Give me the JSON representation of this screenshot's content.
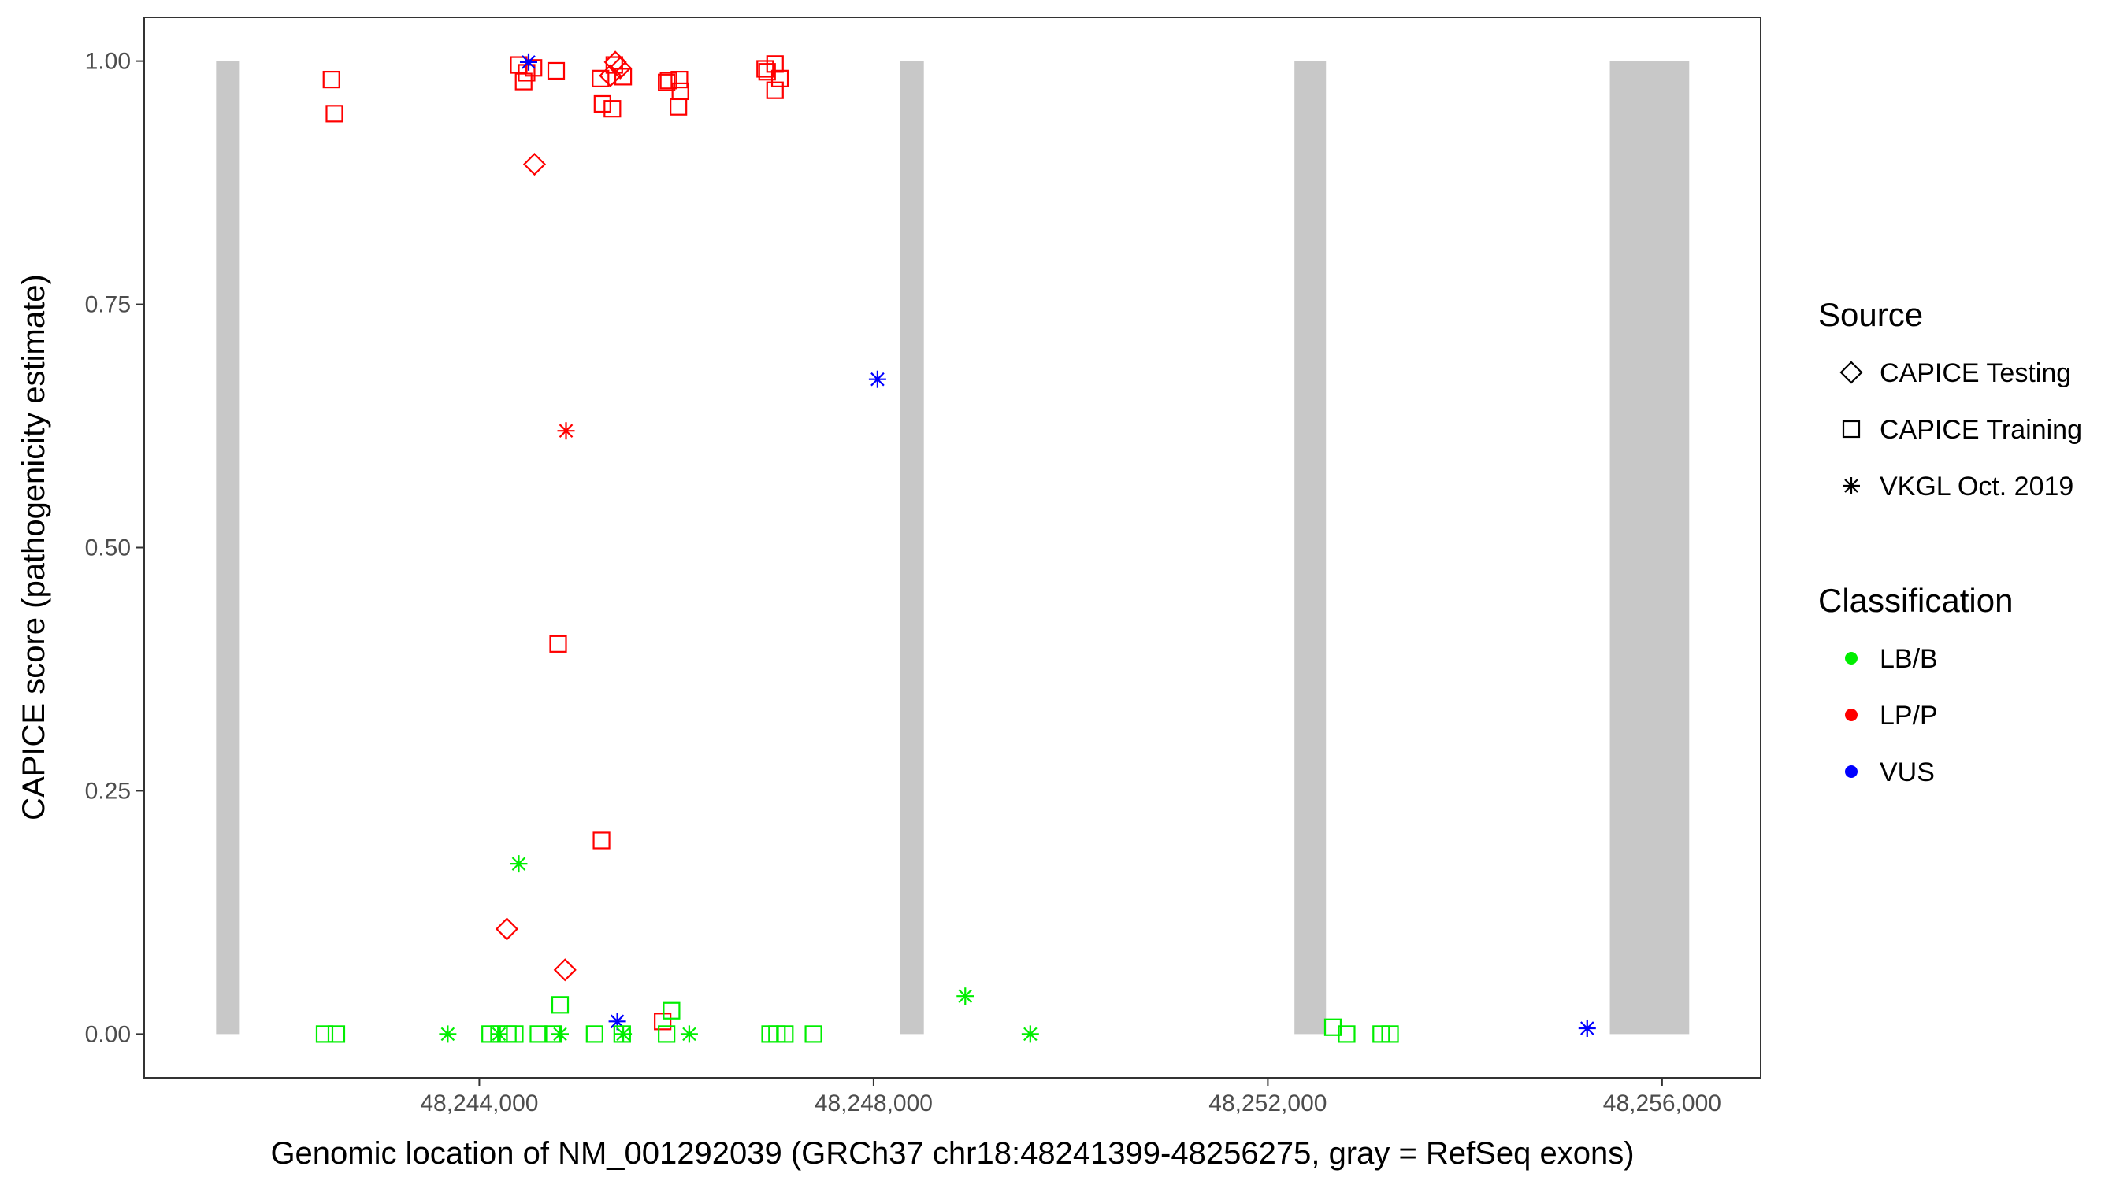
{
  "chart_data": {
    "type": "scatter",
    "title": "",
    "xlabel": "Genomic location of NM_001292039 (GRCh37 chr18:48241399-48256275, gray = RefSeq exons)",
    "ylabel": "CAPICE score (pathogenicity estimate)",
    "xlim": [
      48240600,
      48257000
    ],
    "ylim": [
      -0.045,
      1.045
    ],
    "x_ticks": [
      48244000,
      48248000,
      48252000,
      48256000
    ],
    "x_tick_labels": [
      "48,244,000",
      "48,248,000",
      "48,252,000",
      "48,256,000"
    ],
    "y_ticks": [
      0,
      0.25,
      0.5,
      0.75,
      1.0
    ],
    "y_tick_labels": [
      "0.00",
      "0.25",
      "0.50",
      "0.75",
      "1.00"
    ],
    "grid": false,
    "exons": [
      {
        "start": 48241330,
        "end": 48241570
      },
      {
        "start": 48248270,
        "end": 48248510
      },
      {
        "start": 48252270,
        "end": 48252590
      },
      {
        "start": 48255470,
        "end": 48256275
      }
    ],
    "legend": {
      "placement": "right",
      "source_title": "Source",
      "source_items": [
        {
          "label": "CAPICE Testing",
          "shape": "diamond"
        },
        {
          "label": "CAPICE Training",
          "shape": "square"
        },
        {
          "label": "VKGL Oct. 2019",
          "shape": "asterisk"
        }
      ],
      "classification_title": "Classification",
      "classification_items": [
        {
          "label": "LB/B",
          "color": "#00ee00"
        },
        {
          "label": "LP/P",
          "color": "#ff0000"
        },
        {
          "label": "VUS",
          "color": "#0000ff"
        }
      ]
    },
    "points": [
      {
        "x": 48242500,
        "y": 0.981,
        "source": "square",
        "cls": "LP/P"
      },
      {
        "x": 48242530,
        "y": 0.946,
        "source": "square",
        "cls": "LP/P"
      },
      {
        "x": 48244400,
        "y": 0.996,
        "source": "square",
        "cls": "LP/P"
      },
      {
        "x": 48244450,
        "y": 0.979,
        "source": "square",
        "cls": "LP/P"
      },
      {
        "x": 48244480,
        "y": 0.988,
        "source": "square",
        "cls": "LP/P"
      },
      {
        "x": 48244550,
        "y": 0.993,
        "source": "square",
        "cls": "LP/P"
      },
      {
        "x": 48244780,
        "y": 0.99,
        "source": "square",
        "cls": "LP/P"
      },
      {
        "x": 48245230,
        "y": 0.982,
        "source": "square",
        "cls": "LP/P"
      },
      {
        "x": 48245250,
        "y": 0.956,
        "source": "square",
        "cls": "LP/P"
      },
      {
        "x": 48245350,
        "y": 0.951,
        "source": "square",
        "cls": "LP/P"
      },
      {
        "x": 48245370,
        "y": 0.996,
        "source": "square",
        "cls": "LP/P"
      },
      {
        "x": 48245460,
        "y": 0.984,
        "source": "square",
        "cls": "LP/P"
      },
      {
        "x": 48245900,
        "y": 0.978,
        "source": "square",
        "cls": "LP/P"
      },
      {
        "x": 48245920,
        "y": 0.98,
        "source": "square",
        "cls": "LP/P"
      },
      {
        "x": 48246030,
        "y": 0.981,
        "source": "square",
        "cls": "LP/P"
      },
      {
        "x": 48246040,
        "y": 0.969,
        "source": "square",
        "cls": "LP/P"
      },
      {
        "x": 48246020,
        "y": 0.953,
        "source": "square",
        "cls": "LP/P"
      },
      {
        "x": 48246900,
        "y": 0.992,
        "source": "square",
        "cls": "LP/P"
      },
      {
        "x": 48246920,
        "y": 0.989,
        "source": "square",
        "cls": "LP/P"
      },
      {
        "x": 48247000,
        "y": 0.997,
        "source": "square",
        "cls": "LP/P"
      },
      {
        "x": 48247050,
        "y": 0.982,
        "source": "square",
        "cls": "LP/P"
      },
      {
        "x": 48247000,
        "y": 0.97,
        "source": "square",
        "cls": "LP/P"
      },
      {
        "x": 48244800,
        "y": 0.401,
        "source": "square",
        "cls": "LP/P"
      },
      {
        "x": 48245240,
        "y": 0.199,
        "source": "square",
        "cls": "LP/P"
      },
      {
        "x": 48245860,
        "y": 0.013,
        "source": "square",
        "cls": "LP/P"
      },
      {
        "x": 48245330,
        "y": 0.985,
        "source": "diamond",
        "cls": "LP/P"
      },
      {
        "x": 48245380,
        "y": 0.999,
        "source": "diamond",
        "cls": "LP/P"
      },
      {
        "x": 48245430,
        "y": 0.993,
        "source": "diamond",
        "cls": "LP/P"
      },
      {
        "x": 48244560,
        "y": 0.894,
        "source": "diamond",
        "cls": "LP/P"
      },
      {
        "x": 48244280,
        "y": 0.108,
        "source": "diamond",
        "cls": "LP/P"
      },
      {
        "x": 48244870,
        "y": 0.066,
        "source": "diamond",
        "cls": "LP/P"
      },
      {
        "x": 48244880,
        "y": 0.62,
        "source": "asterisk",
        "cls": "LP/P"
      },
      {
        "x": 48244500,
        "y": 0.999,
        "source": "asterisk",
        "cls": "VUS"
      },
      {
        "x": 48248040,
        "y": 0.673,
        "source": "asterisk",
        "cls": "VUS"
      },
      {
        "x": 48245400,
        "y": 0.013,
        "source": "asterisk",
        "cls": "VUS"
      },
      {
        "x": 48255240,
        "y": 0.006,
        "source": "asterisk",
        "cls": "VUS"
      },
      {
        "x": 48244400,
        "y": 0.175,
        "source": "asterisk",
        "cls": "LB/B"
      },
      {
        "x": 48248930,
        "y": 0.039,
        "source": "asterisk",
        "cls": "LB/B"
      },
      {
        "x": 48243680,
        "y": 0.0,
        "source": "asterisk",
        "cls": "LB/B"
      },
      {
        "x": 48244200,
        "y": 0.0,
        "source": "asterisk",
        "cls": "LB/B"
      },
      {
        "x": 48244820,
        "y": 0.0,
        "source": "asterisk",
        "cls": "LB/B"
      },
      {
        "x": 48245460,
        "y": 0.0,
        "source": "asterisk",
        "cls": "LB/B"
      },
      {
        "x": 48246130,
        "y": 0.0,
        "source": "asterisk",
        "cls": "LB/B"
      },
      {
        "x": 48249590,
        "y": 0.0,
        "source": "asterisk",
        "cls": "LB/B"
      },
      {
        "x": 48242430,
        "y": 0.0,
        "source": "square",
        "cls": "LB/B"
      },
      {
        "x": 48242550,
        "y": 0.0,
        "source": "square",
        "cls": "LB/B"
      },
      {
        "x": 48244110,
        "y": 0.0,
        "source": "square",
        "cls": "LB/B"
      },
      {
        "x": 48244200,
        "y": 0.0,
        "source": "square",
        "cls": "LB/B"
      },
      {
        "x": 48244290,
        "y": 0.0,
        "source": "square",
        "cls": "LB/B"
      },
      {
        "x": 48244360,
        "y": 0.0,
        "source": "square",
        "cls": "LB/B"
      },
      {
        "x": 48244600,
        "y": 0.0,
        "source": "square",
        "cls": "LB/B"
      },
      {
        "x": 48244750,
        "y": 0.0,
        "source": "square",
        "cls": "LB/B"
      },
      {
        "x": 48244820,
        "y": 0.03,
        "source": "square",
        "cls": "LB/B"
      },
      {
        "x": 48245170,
        "y": 0.0,
        "source": "square",
        "cls": "LB/B"
      },
      {
        "x": 48245450,
        "y": 0.0,
        "source": "square",
        "cls": "LB/B"
      },
      {
        "x": 48245900,
        "y": 0.0,
        "source": "square",
        "cls": "LB/B"
      },
      {
        "x": 48245950,
        "y": 0.024,
        "source": "square",
        "cls": "LB/B"
      },
      {
        "x": 48246950,
        "y": 0.0,
        "source": "square",
        "cls": "LB/B"
      },
      {
        "x": 48247020,
        "y": 0.0,
        "source": "square",
        "cls": "LB/B"
      },
      {
        "x": 48247100,
        "y": 0.0,
        "source": "square",
        "cls": "LB/B"
      },
      {
        "x": 48247390,
        "y": 0.0,
        "source": "square",
        "cls": "LB/B"
      },
      {
        "x": 48252660,
        "y": 0.007,
        "source": "square",
        "cls": "LB/B"
      },
      {
        "x": 48252800,
        "y": 0.0,
        "source": "square",
        "cls": "LB/B"
      },
      {
        "x": 48253150,
        "y": 0.0,
        "source": "square",
        "cls": "LB/B"
      },
      {
        "x": 48253240,
        "y": 0.0,
        "source": "square",
        "cls": "LB/B"
      }
    ]
  }
}
